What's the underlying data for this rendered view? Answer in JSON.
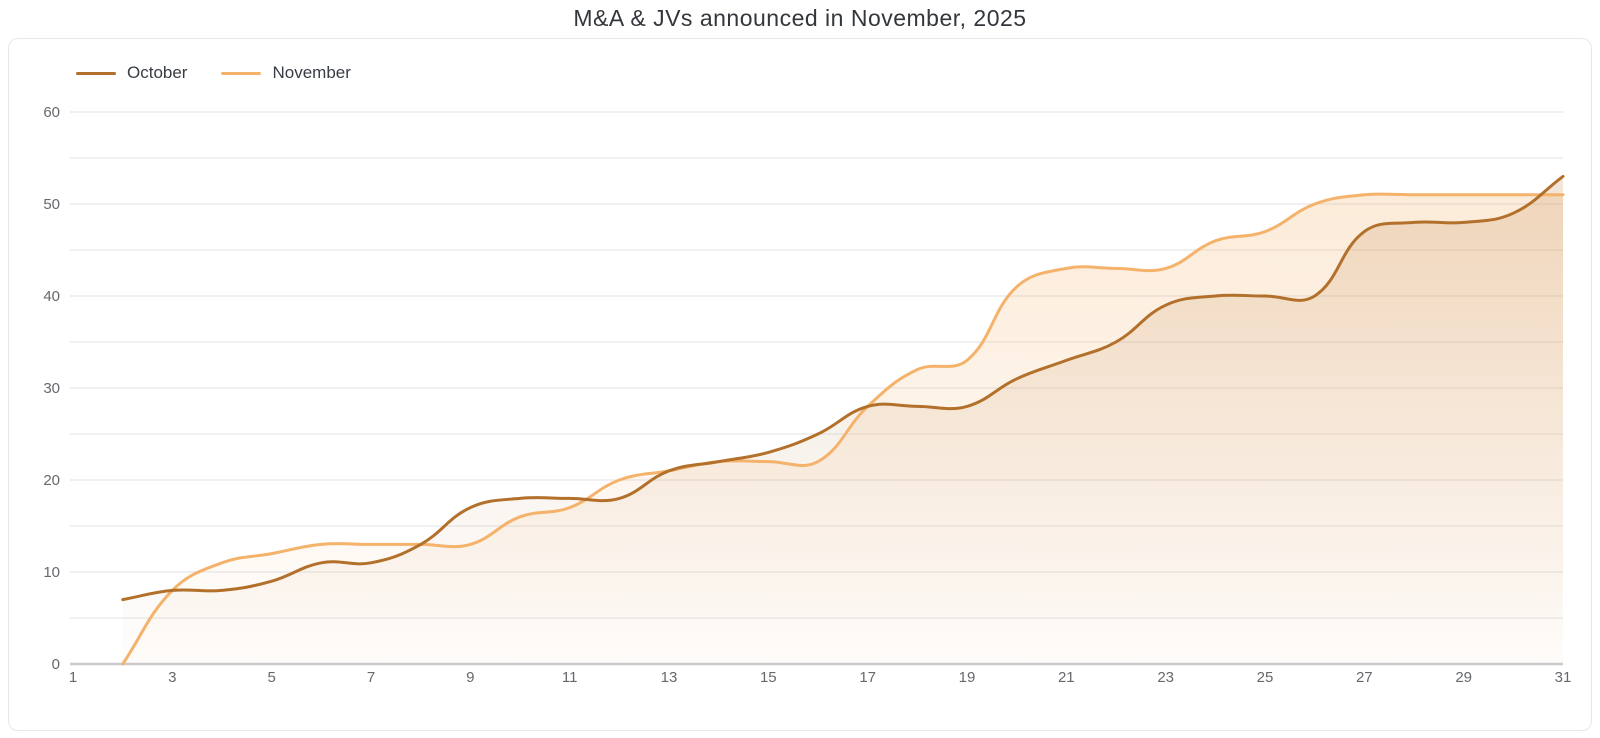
{
  "title": "M&A & JVs announced in November, 2025",
  "legend": {
    "items": [
      {
        "label": "October",
        "color": "#b2702b"
      },
      {
        "label": "November",
        "color": "#f4b26b"
      }
    ]
  },
  "chart_data": {
    "type": "area",
    "title": "M&A & JVs announced in November, 2025",
    "xlabel": "",
    "ylabel": "",
    "x": [
      2,
      3,
      4,
      5,
      6,
      7,
      8,
      9,
      10,
      11,
      12,
      13,
      14,
      15,
      16,
      17,
      18,
      19,
      20,
      21,
      22,
      23,
      24,
      25,
      26,
      27,
      28,
      29,
      30,
      31
    ],
    "series": [
      {
        "name": "October",
        "color": "#b2702b",
        "fill_color": "#b26d2a",
        "values": [
          7,
          8,
          8,
          9,
          11,
          11,
          13,
          17,
          18,
          18,
          18,
          21,
          22,
          23,
          25,
          28,
          28,
          28,
          31,
          33,
          35,
          39,
          40,
          40,
          40,
          47,
          48,
          48,
          49,
          53
        ]
      },
      {
        "name": "November",
        "color": "#f4b26b",
        "fill_color": "#f4b26b",
        "values": [
          0,
          8,
          11,
          12,
          13,
          13,
          13,
          13,
          16,
          17,
          20,
          21,
          22,
          22,
          22,
          28,
          32,
          33,
          41,
          43,
          43,
          43,
          46,
          47,
          50,
          51,
          51,
          51,
          51,
          51
        ]
      }
    ],
    "xlim": [
      1,
      31
    ],
    "ylim": [
      0,
      60
    ],
    "x_tick_labels": [
      1,
      3,
      5,
      7,
      9,
      11,
      13,
      15,
      17,
      19,
      21,
      23,
      25,
      27,
      29,
      31
    ],
    "y_tick_labels": [
      0,
      10,
      20,
      30,
      40,
      50,
      60
    ],
    "grid": "horizontal gridlines every 5 units, zero baseline emphasized",
    "legend_position": "top-left",
    "line_smoothing": "cubic (tension 0.4)"
  },
  "axis_colors": {
    "label": "#65686d",
    "gridline": "#e8e8ea",
    "baseline": "#c9cacc"
  }
}
